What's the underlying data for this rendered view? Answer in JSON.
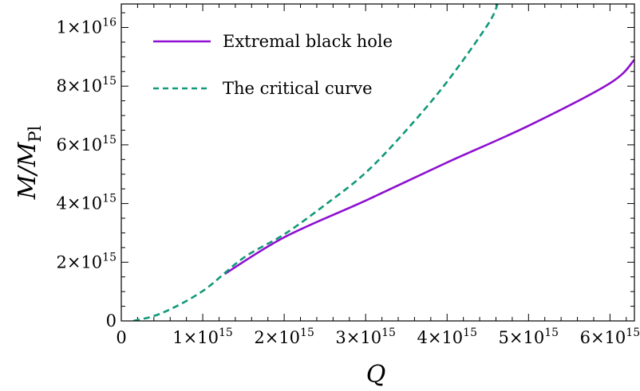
{
  "chart_data": {
    "type": "line",
    "xlabel": "Q",
    "ylabel": "M/M_Pl",
    "xlim": [
      0,
      6300000000000000.0
    ],
    "ylim": [
      0,
      1.08e+16
    ],
    "x_ticks": [
      {
        "value": 0,
        "mant": "0",
        "exp": ""
      },
      {
        "value": 1000000000000000.0,
        "mant": "1×10",
        "exp": "15"
      },
      {
        "value": 2000000000000000.0,
        "mant": "2×10",
        "exp": "15"
      },
      {
        "value": 3000000000000000.0,
        "mant": "3×10",
        "exp": "15"
      },
      {
        "value": 4000000000000000.0,
        "mant": "4×10",
        "exp": "15"
      },
      {
        "value": 5000000000000000.0,
        "mant": "5×10",
        "exp": "15"
      },
      {
        "value": 6000000000000000.0,
        "mant": "6×10",
        "exp": "15"
      }
    ],
    "y_ticks": [
      {
        "value": 0,
        "mant": "0",
        "exp": ""
      },
      {
        "value": 2000000000000000.0,
        "mant": "2×10",
        "exp": "15"
      },
      {
        "value": 4000000000000000.0,
        "mant": "4×10",
        "exp": "15"
      },
      {
        "value": 6000000000000000.0,
        "mant": "6×10",
        "exp": "15"
      },
      {
        "value": 8000000000000000.0,
        "mant": "8×10",
        "exp": "15"
      },
      {
        "value": 1e+16,
        "mant": "1×10",
        "exp": "16"
      }
    ],
    "legend_position": "top-left",
    "series": [
      {
        "name": "Extremal black hole",
        "color": "#8e0fd0",
        "style": "solid",
        "x": [
          1270000000000000.0,
          2000000000000000.0,
          3000000000000000.0,
          4000000000000000.0,
          5000000000000000.0,
          6000000000000000.0,
          6300000000000000.0
        ],
        "y": [
          1600000000000000.0,
          2850000000000000.0,
          4100000000000000.0,
          5400000000000000.0,
          6650000000000000.0,
          8100000000000000.0,
          8900000000000000.0
        ]
      },
      {
        "name": "The critical curve",
        "color": "#12997a",
        "style": "dashed",
        "x": [
          150000000000000.0,
          500000000000000.0,
          1000000000000000.0,
          1500000000000000.0,
          2000000000000000.0,
          2500000000000000.0,
          3000000000000000.0,
          3500000000000000.0,
          4000000000000000.0,
          4500000000000000.0,
          4620000000000000.0
        ],
        "y": [
          0,
          270000000000000.0,
          1020000000000000.0,
          2150000000000000.0,
          2950000000000000.0,
          3950000000000000.0,
          5050000000000000.0,
          6500000000000000.0,
          8150000000000000.0,
          1.01e+16,
          1.08e+16
        ]
      }
    ]
  }
}
